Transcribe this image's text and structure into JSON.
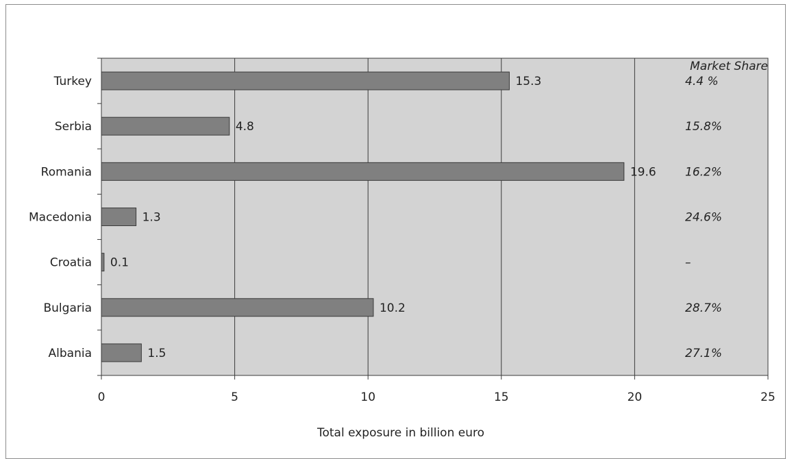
{
  "chart_data": {
    "type": "bar",
    "orientation": "horizontal",
    "categories": [
      "Turkey",
      "Serbia",
      "Romania",
      "Macedonia",
      "Croatia",
      "Bulgaria",
      "Albania"
    ],
    "values": [
      15.3,
      4.8,
      19.6,
      1.3,
      0.1,
      10.2,
      1.5
    ],
    "value_labels": [
      "15.3",
      "4.8",
      "19.6",
      "1.3",
      "0.1",
      "10.2",
      "1.5"
    ],
    "xlabel": "Total exposure in billion euro",
    "xlim": [
      0,
      25
    ],
    "x_ticks": [
      0,
      5,
      10,
      15,
      20,
      25
    ],
    "x_tick_labels": [
      "0",
      "5",
      "10",
      "15",
      "20",
      "25"
    ],
    "grid": true,
    "market_share": {
      "header": "Market Share",
      "values": [
        "4.4 %",
        "15.8%",
        "16.2%",
        "24.6%",
        "–",
        "28.7%",
        "27.1%"
      ]
    },
    "colors": {
      "plot_background": "#d3d3d3",
      "bar_fill": "#808080",
      "bar_stroke": "#3a3a3a",
      "gridline": "#3a3a3a"
    }
  }
}
